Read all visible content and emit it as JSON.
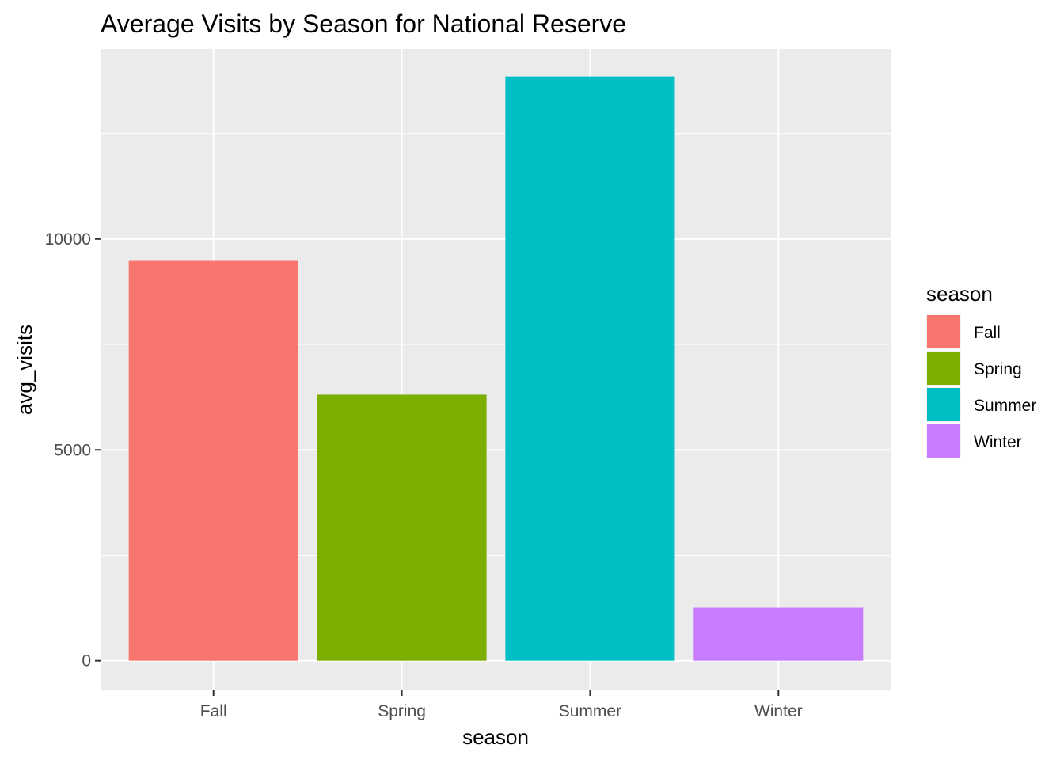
{
  "chart_data": {
    "type": "bar",
    "title": "Average Visits by Season for National Reserve",
    "xlabel": "season",
    "ylabel": "avg_visits",
    "categories": [
      "Fall",
      "Spring",
      "Summer",
      "Winter"
    ],
    "values": [
      9480,
      6310,
      13850,
      1260
    ],
    "colors": [
      "#F8766D",
      "#7CAE00",
      "#00BFC4",
      "#C77CFF"
    ],
    "ylim": [
      -700,
      14500
    ],
    "yticks": [
      0,
      5000,
      10000
    ],
    "ytick_labels": [
      "0",
      "5000",
      "10000"
    ],
    "grid": true,
    "panel_background": "#EBEBEB",
    "legend": {
      "title": "season",
      "position": "right",
      "items": [
        "Fall",
        "Spring",
        "Summer",
        "Winter"
      ]
    }
  }
}
